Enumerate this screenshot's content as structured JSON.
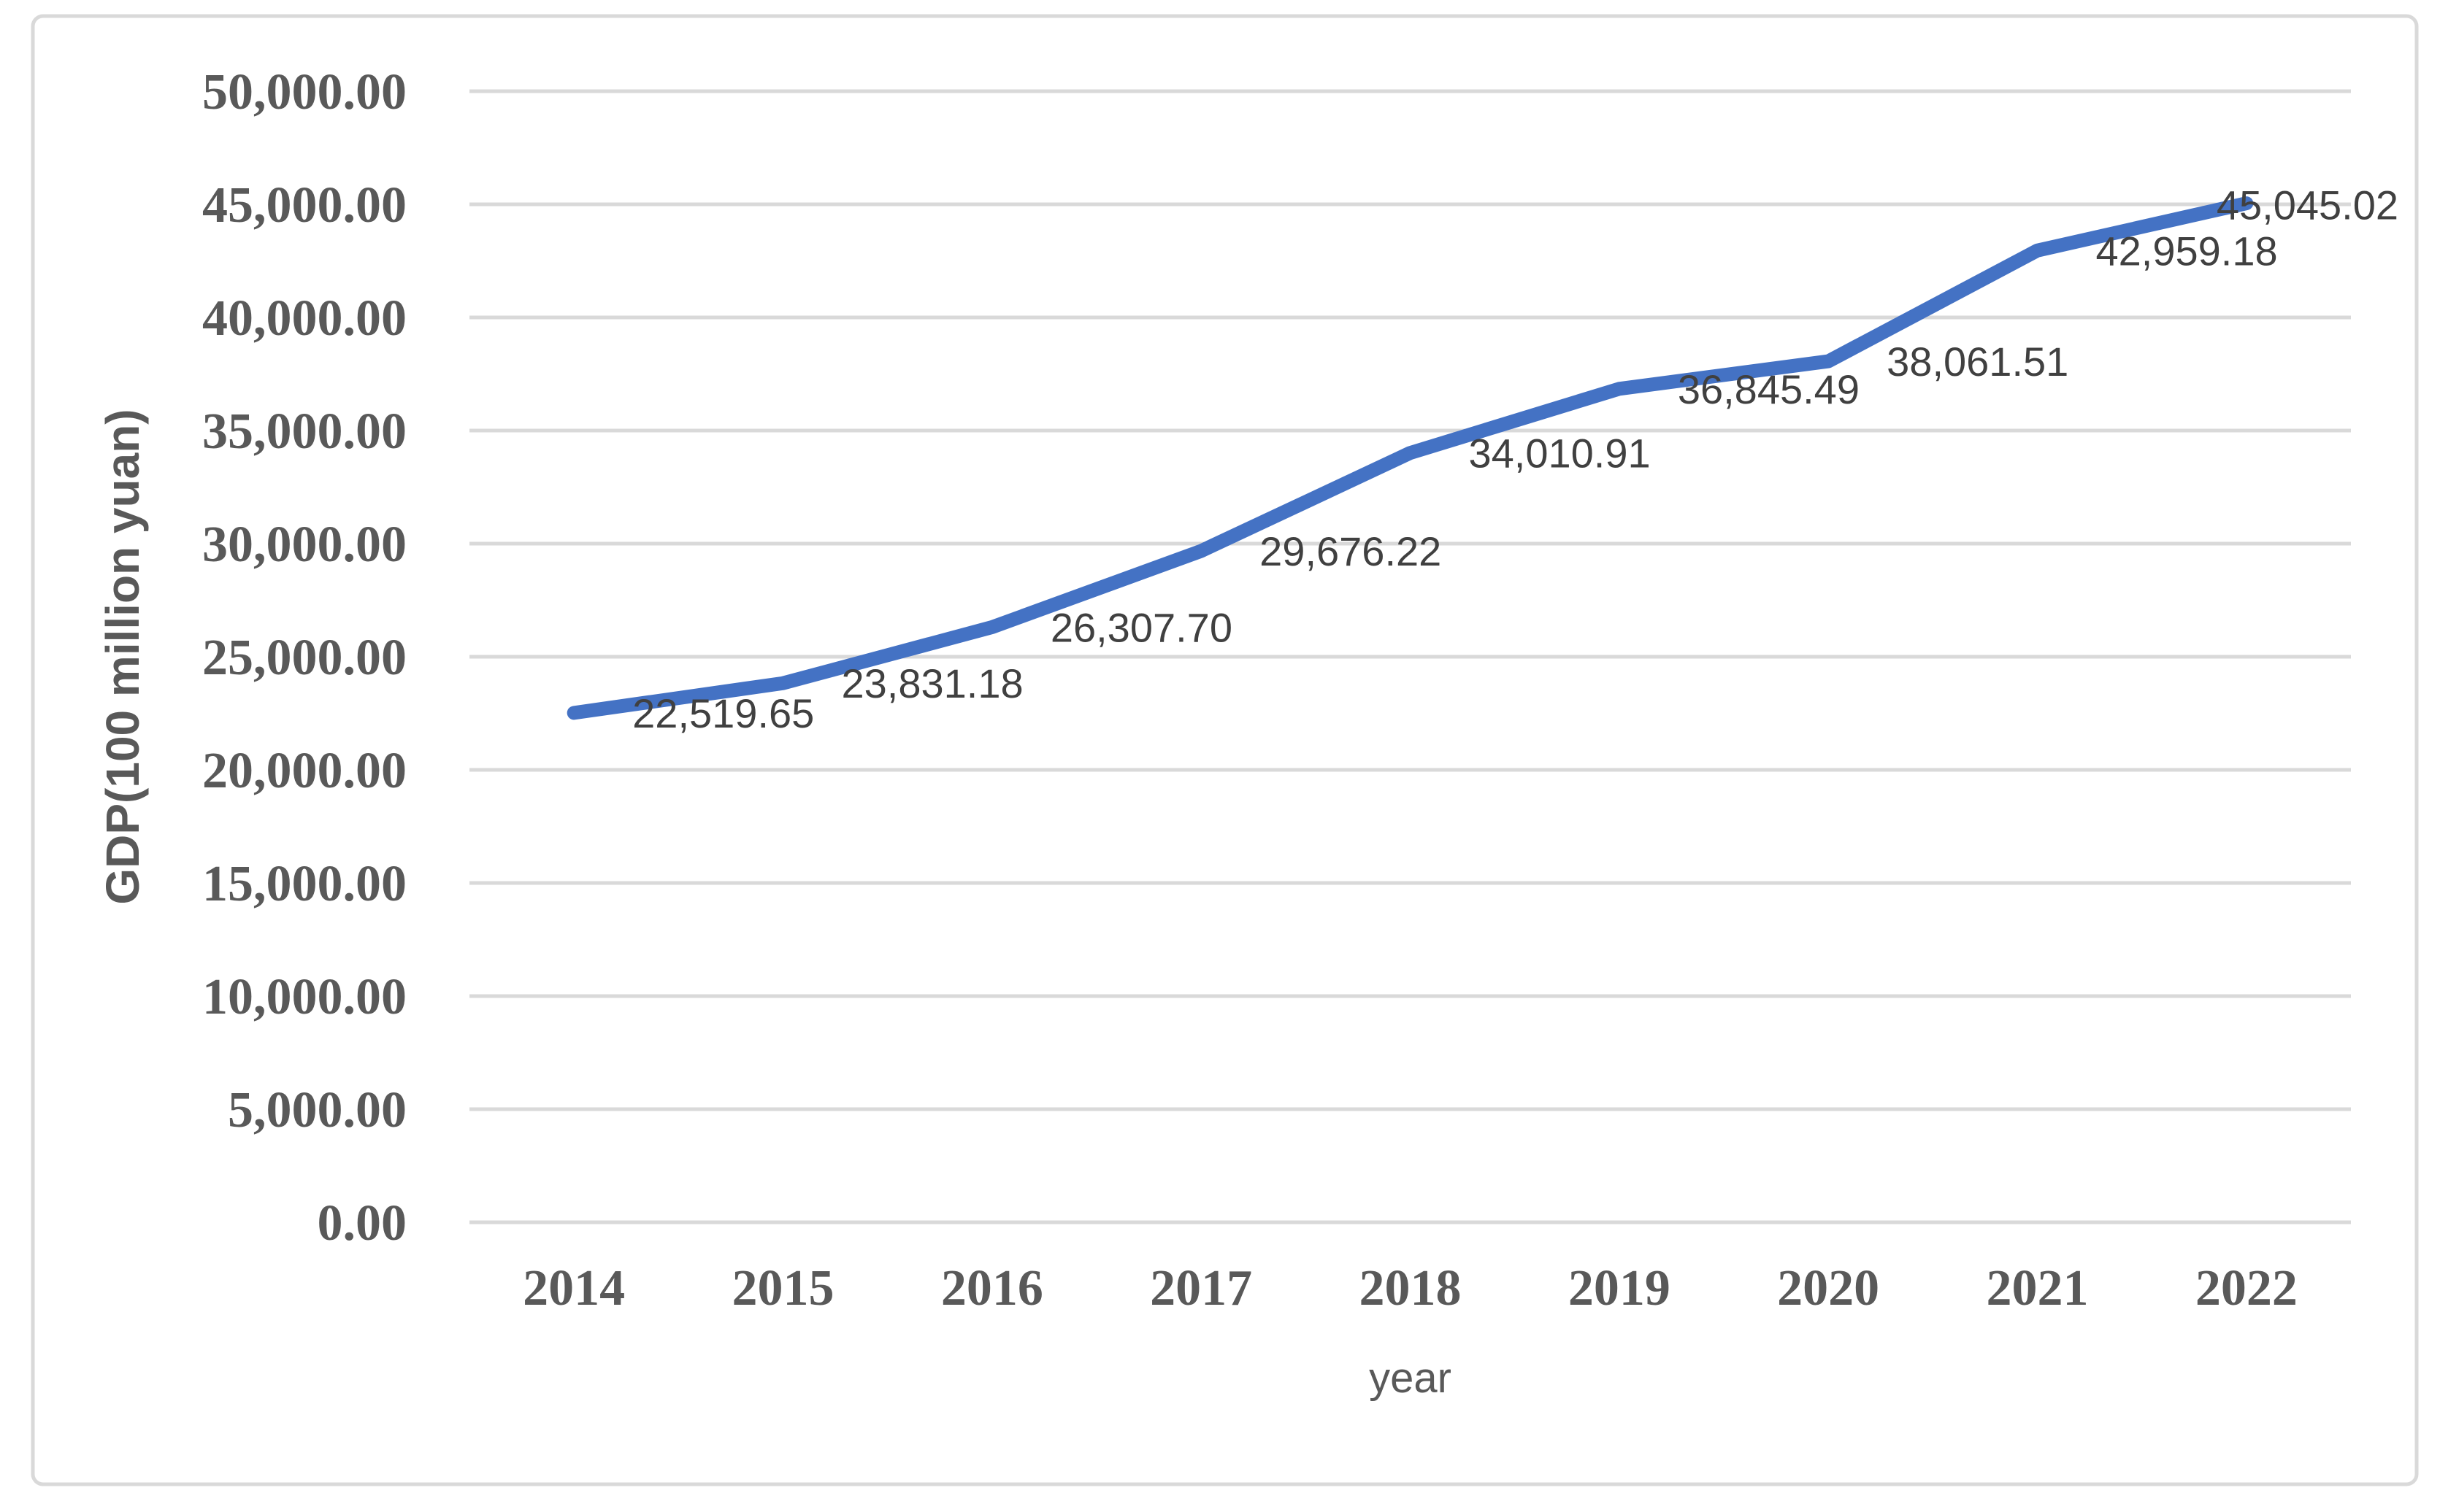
{
  "chart_data": {
    "type": "line",
    "title": "",
    "xlabel": "year",
    "ylabel": "GDP(100 million yuan)",
    "categories": [
      "2014",
      "2015",
      "2016",
      "2017",
      "2018",
      "2019",
      "2020",
      "2021",
      "2022"
    ],
    "series": [
      {
        "name": "GDP",
        "values": [
          22519.65,
          23831.18,
          26307.7,
          29676.22,
          34010.91,
          36845.49,
          38061.51,
          42959.18,
          45045.02
        ]
      }
    ],
    "data_labels": [
      "22,519.65",
      "23,831.18",
      "26,307.70",
      "29,676.22",
      "34,010.91",
      "36,845.49",
      "38,061.51",
      "42,959.18",
      "45,045.02"
    ],
    "y_ticks": [
      "50,000.00",
      "45,000.00",
      "40,000.00",
      "35,000.00",
      "30,000.00",
      "25,000.00",
      "20,000.00",
      "15,000.00",
      "10,000.00",
      "5,000.00",
      "0.00"
    ],
    "ylim": [
      0,
      50000
    ],
    "y_step": 5000,
    "grid": "horizontal-only",
    "legend_position": "none",
    "colors": {
      "line": "#4472C4",
      "gridline": "#D9D9D9",
      "frame_border": "#D9D9D9",
      "tick_text": "#595959",
      "data_label_text": "#404040",
      "axis_title_text": "#595959",
      "background": "#FFFFFF"
    }
  }
}
